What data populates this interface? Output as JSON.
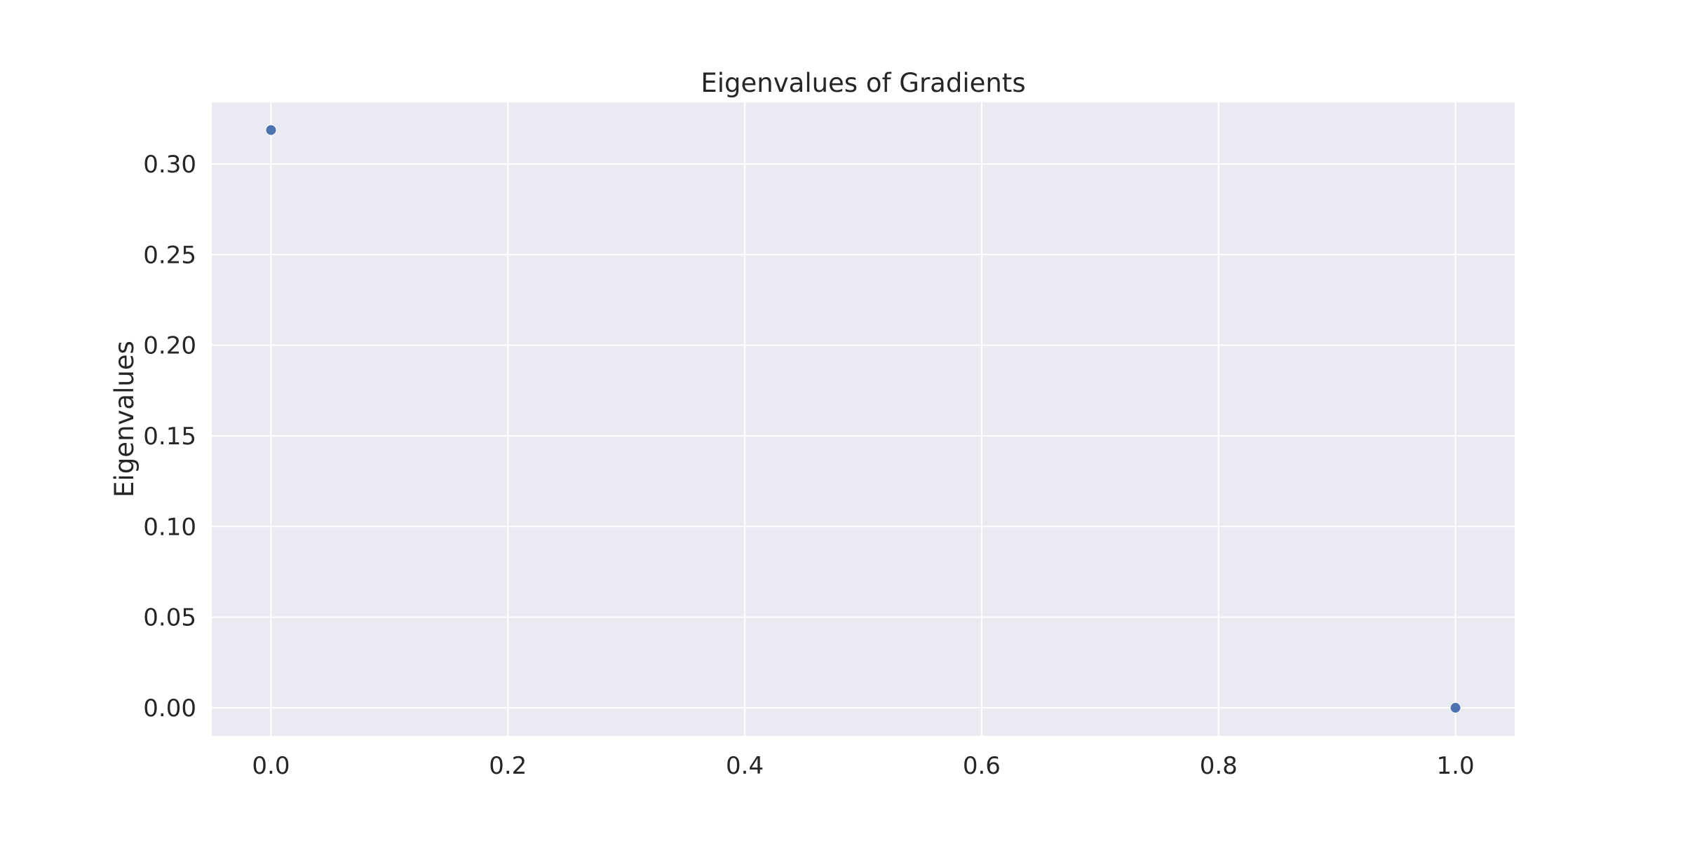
{
  "chart_data": {
    "type": "scatter",
    "title": "Eigenvalues of Gradients",
    "xlabel": "",
    "ylabel": "Eigenvalues",
    "x": [
      0.0,
      1.0
    ],
    "y": [
      0.3187,
      0.0
    ],
    "xlim": [
      -0.05,
      1.05
    ],
    "ylim": [
      -0.0155,
      0.334
    ],
    "xticks": [
      0.0,
      0.2,
      0.4,
      0.6,
      0.8,
      1.0
    ],
    "xtick_labels": [
      "0.0",
      "0.2",
      "0.4",
      "0.6",
      "0.8",
      "1.0"
    ],
    "yticks": [
      0.0,
      0.05,
      0.1,
      0.15,
      0.2,
      0.25,
      0.3
    ],
    "ytick_labels": [
      "0.00",
      "0.05",
      "0.10",
      "0.15",
      "0.20",
      "0.25",
      "0.30"
    ],
    "grid": true,
    "legend": "none",
    "colors": {
      "background": "#eaeaf2",
      "grid": "#ffffff",
      "point": "#4c72b0",
      "text": "#262626"
    }
  }
}
